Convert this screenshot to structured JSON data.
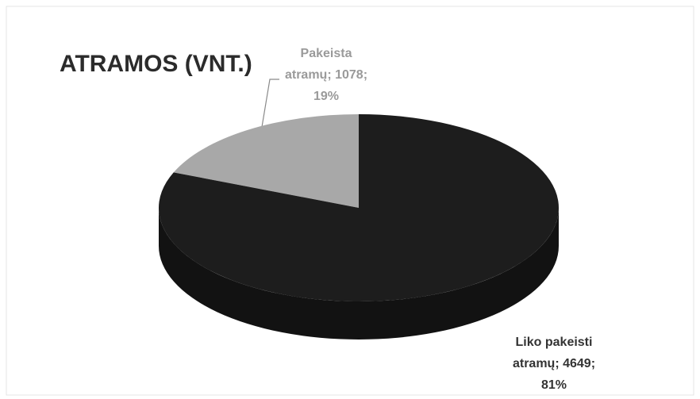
{
  "chart_data": {
    "type": "pie",
    "title": "ATRAMOS (VNT.)",
    "values": [
      1078,
      4649
    ],
    "value_labels": [
      [
        "Pakeista",
        "atramų; 1078;",
        "19%"
      ],
      [
        "Liko pakeisti",
        "atramų; 4649;",
        "81%"
      ]
    ],
    "colors": [
      "#a8a8a8",
      "#1d1d1d"
    ]
  }
}
